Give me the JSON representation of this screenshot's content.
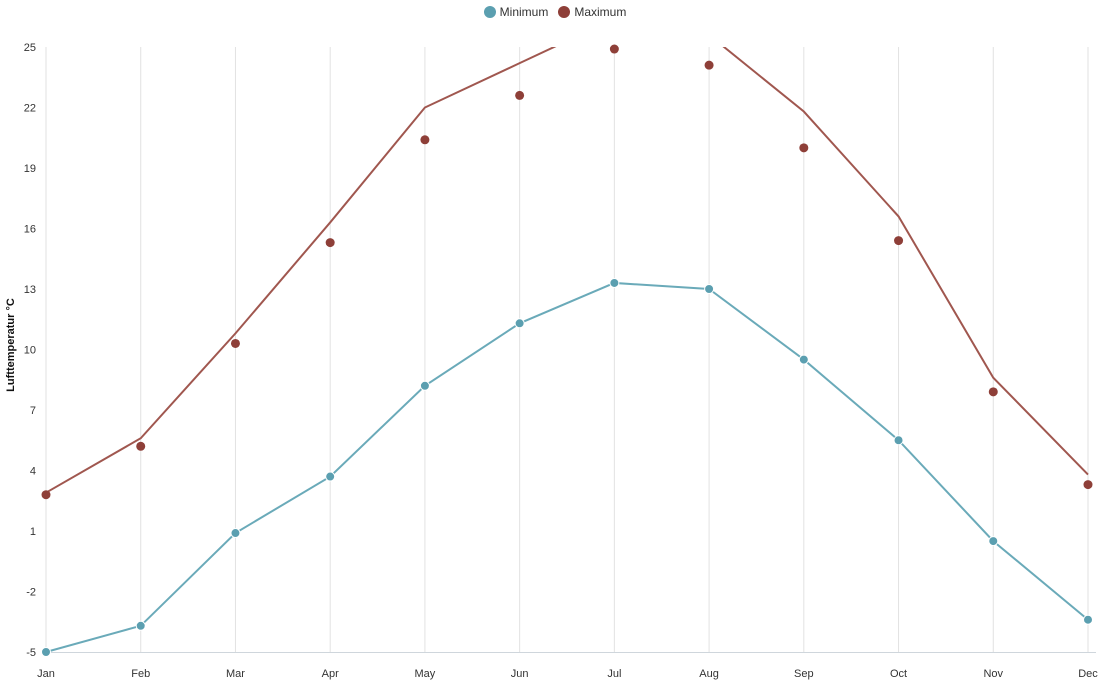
{
  "chart_data": {
    "type": "line",
    "categories": [
      "Jan",
      "Feb",
      "Mar",
      "Apr",
      "May",
      "Jun",
      "Jul",
      "Aug",
      "Sep",
      "Oct",
      "Nov",
      "Dec"
    ],
    "ylabel": "Lufttemperatur °C",
    "xlabel": "",
    "ylim": [
      -5,
      25
    ],
    "yticks": [
      -5,
      -2,
      1,
      4,
      7,
      10,
      13,
      16,
      19,
      22,
      25
    ],
    "grid": "vertical",
    "legend_position": "top-center",
    "series": [
      {
        "name": "Minimum",
        "color": "#5b9fb0",
        "line_color": "#6aaab9",
        "style": "line-with-markers",
        "values": [
          -5.0,
          -3.7,
          0.9,
          3.7,
          8.2,
          11.3,
          13.3,
          13.0,
          9.5,
          5.5,
          0.5,
          -3.4
        ]
      },
      {
        "name": "Maximum",
        "color": "#8e3f38",
        "style": "markers-with-smooth-trend",
        "values": [
          2.8,
          5.2,
          10.3,
          15.3,
          20.4,
          22.6,
          24.9,
          24.1,
          20.0,
          15.4,
          7.9,
          3.3
        ],
        "trend_color": "#a0574f",
        "trend_values": [
          2.9,
          5.6,
          10.8,
          16.3,
          22.0,
          24.2,
          26.4,
          25.6,
          21.8,
          16.6,
          8.6,
          3.8
        ]
      }
    ]
  }
}
